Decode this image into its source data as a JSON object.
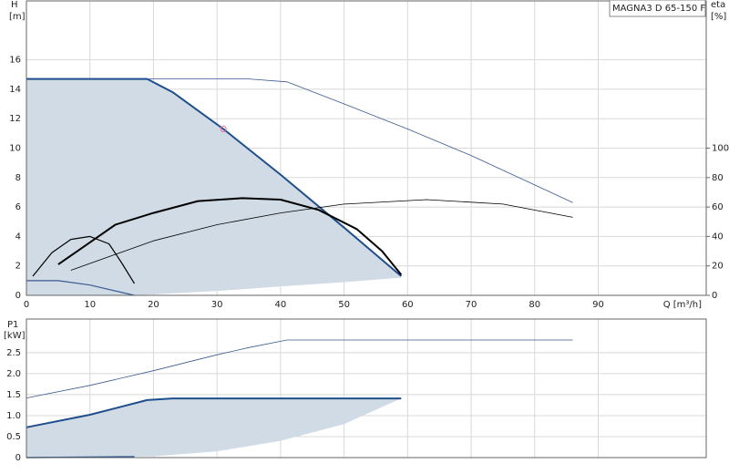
{
  "chart_data": [
    {
      "type": "line",
      "title": "MAGNA3 D 65-150 F",
      "y_label": "H",
      "y_unit": "[m]",
      "y2_label": "eta",
      "y2_unit": "[%]",
      "x_label": "Q [m³/h]",
      "xlim": [
        0,
        107
      ],
      "xticks": [
        0,
        10,
        20,
        30,
        40,
        50,
        60,
        70,
        80,
        90
      ],
      "ylim": [
        0,
        20
      ],
      "yticks": [
        0,
        2,
        4,
        6,
        8,
        10,
        12,
        14,
        16
      ],
      "y2lim": [
        0,
        200
      ],
      "y2ticks": [
        0,
        20,
        40,
        60,
        80,
        100
      ],
      "grid": true,
      "series": [
        {
          "fill": "#d0dbe6",
          "color": "#d0dbe6",
          "width": 0,
          "x": [
            0,
            19,
            23,
            31,
            40,
            50,
            59,
            50,
            40,
            30,
            17,
            0
          ],
          "values": [
            14.7,
            14.7,
            13.8,
            11.3,
            8.2,
            4.6,
            1.2,
            0.9,
            0.6,
            0.3,
            0,
            0
          ]
        },
        {
          "color": "#1f4e8c",
          "width": 2,
          "x": [
            0,
            19,
            23,
            31,
            40,
            50,
            59
          ],
          "values": [
            14.7,
            14.7,
            13.8,
            11.3,
            8.2,
            4.6,
            1.3
          ]
        },
        {
          "color": "#3a5a90",
          "width": 0.8,
          "x": [
            19,
            35,
            41,
            50,
            60,
            70,
            80,
            86
          ],
          "values": [
            14.7,
            14.7,
            14.5,
            13.0,
            11.3,
            9.5,
            7.5,
            6.3
          ]
        },
        {
          "color": "#3a5a90",
          "width": 1.2,
          "x": [
            0,
            5,
            10,
            17
          ],
          "values": [
            1.0,
            1.0,
            0.7,
            0
          ]
        },
        {
          "color": "#000000",
          "width": 2,
          "axis": "y2",
          "x": [
            5,
            10,
            14,
            20,
            27,
            34,
            40,
            46,
            52,
            56,
            59
          ],
          "values": [
            21,
            36,
            48,
            56,
            64,
            66,
            65,
            58,
            45,
            30,
            14
          ]
        },
        {
          "color": "#000000",
          "width": 0.8,
          "axis": "y2",
          "x": [
            7,
            20,
            30,
            40,
            50,
            63,
            75,
            86
          ],
          "values": [
            17,
            37,
            48,
            56,
            62,
            65,
            62,
            53
          ]
        },
        {
          "color": "#000000",
          "width": 1.2,
          "axis": "y2",
          "x": [
            1,
            4,
            7,
            10,
            13,
            15,
            17
          ],
          "values": [
            13,
            29,
            38,
            40,
            35,
            22,
            8
          ]
        },
        {
          "color": "#1f4e8c",
          "width": 1.2,
          "x": [
            19,
            59
          ],
          "values": [
            14.7,
            1.2
          ],
          "hidden": true
        }
      ],
      "points": [
        {
          "x": 31,
          "y": 11.3,
          "color": "#e07090"
        }
      ]
    },
    {
      "type": "line",
      "y_label": "P1",
      "y_unit": "[kW]",
      "xlim": [
        0,
        107
      ],
      "ylim": [
        0,
        3.3
      ],
      "yticks": [
        0,
        0.5,
        {
          "value": 1,
          "label": "1.0"
        },
        1.5,
        {
          "value": 2,
          "label": "2.0"
        },
        2.5
      ],
      "grid": true,
      "series": [
        {
          "fill": "#d0dbe6",
          "color": "#d0dbe6",
          "width": 0,
          "x": [
            0,
            10,
            19,
            23,
            59,
            50,
            40,
            30,
            20,
            0
          ],
          "values": [
            0.72,
            1.02,
            1.37,
            1.41,
            1.41,
            0.8,
            0.4,
            0.15,
            0.03,
            0
          ]
        },
        {
          "color": "#1f4e8c",
          "width": 2,
          "x": [
            0,
            10,
            19,
            23,
            59
          ],
          "values": [
            0.72,
            1.02,
            1.37,
            1.41,
            1.41
          ]
        },
        {
          "color": "#3a5a90",
          "width": 0.8,
          "x": [
            0,
            10,
            20,
            30,
            35,
            41,
            86
          ],
          "values": [
            1.42,
            1.72,
            2.07,
            2.45,
            2.62,
            2.8,
            2.8
          ]
        },
        {
          "color": "#1f4e8c",
          "width": 1.5,
          "x": [
            0,
            17
          ],
          "values": [
            0.0,
            0.02
          ]
        }
      ]
    }
  ]
}
